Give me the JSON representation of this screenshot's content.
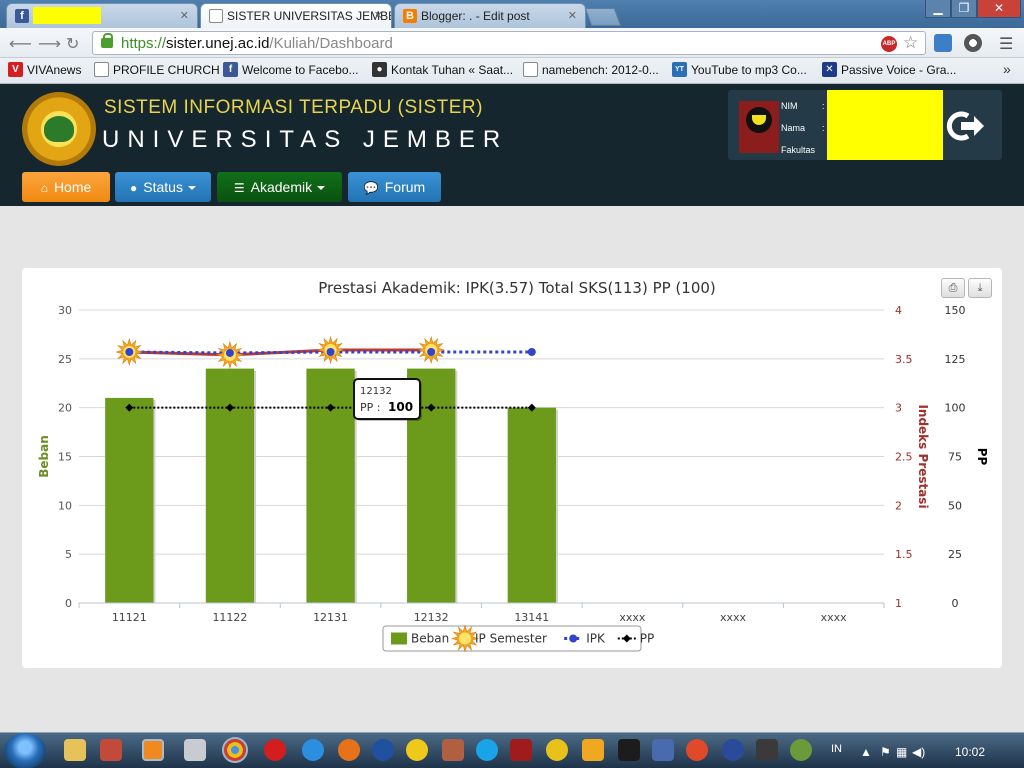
{
  "browser": {
    "tabs": [
      {
        "label": "",
        "icon": "facebook-icon",
        "active": false
      },
      {
        "label": "SISTER UNIVERSITAS JEMBER",
        "icon": "page-icon",
        "active": true
      },
      {
        "label": "Blogger: . - Edit post",
        "icon": "blogger-icon",
        "active": false
      }
    ],
    "url_protocol": "https://",
    "url_host": "sister.unej.ac.id",
    "url_path": "/Kuliah/Dashboard",
    "bookmarks": [
      {
        "label": "VIVAnews",
        "icon": "vivanews-icon",
        "color": "#d42020"
      },
      {
        "label": "PROFILE CHURCH",
        "icon": "page-icon",
        "color": "#ffffff"
      },
      {
        "label": "Welcome to Facebo...",
        "icon": "facebook-icon",
        "color": "#3b5998"
      },
      {
        "label": "Kontak Tuhan « Saat...",
        "icon": "blog-icon",
        "color": "#333333"
      },
      {
        "label": "namebench: 2012-0...",
        "icon": "page-icon",
        "color": "#ffffff"
      },
      {
        "label": "YouTube to mp3 Co...",
        "icon": "youtube-mp3-icon",
        "color": "#2a6fb8"
      },
      {
        "label": "Passive Voice - Gra...",
        "icon": "uk-flag-icon",
        "color": "#1e3b8a"
      }
    ],
    "more_bookmarks": "»"
  },
  "site": {
    "title": "SISTEM INFORMASI TERPADU (SISTER)",
    "subtitle": "UNIVERSITAS JEMBER",
    "user": {
      "nim_label": "NIM",
      "nama_label": "Nama",
      "fakultas_label": "Fakultas",
      "colon": ":"
    },
    "nav": [
      {
        "label": "Home",
        "icon": "home-icon",
        "color": "#f7931e"
      },
      {
        "label": "Status",
        "icon": "user-icon",
        "color": "#2a7fc0"
      },
      {
        "label": "Akademik",
        "icon": "list-icon",
        "color": "#0b5e0b"
      },
      {
        "label": "Forum",
        "icon": "chat-icon",
        "color": "#2a7fc0"
      }
    ]
  },
  "chart_data": {
    "type": "bar",
    "title": "Prestasi Akademik: IPK(3.57) Total SKS(113) PP (100)",
    "categories": [
      "11121",
      "11122",
      "12131",
      "12132",
      "13141",
      "xxxx",
      "xxxx",
      "xxxx"
    ],
    "axes": {
      "left": {
        "label": "Beban",
        "min": 0,
        "max": 30,
        "ticks": [
          0,
          5,
          10,
          15,
          20,
          25,
          30
        ],
        "color": "#6b8e23"
      },
      "right1": {
        "label": "Indeks Prestasi",
        "min": 1,
        "max": 4,
        "ticks": [
          "1",
          "1.5",
          "2",
          "2.5",
          "3",
          "3.5",
          "4"
        ],
        "color": "#a0302a"
      },
      "right2": {
        "label": "PP",
        "min": 0,
        "max": 150,
        "ticks": [
          0,
          25,
          50,
          75,
          100,
          125,
          150
        ],
        "color": "#000000"
      }
    },
    "series": [
      {
        "name": "Beban",
        "type": "bar",
        "axis": "left",
        "color": "#6c9a1b",
        "values": [
          21,
          24,
          24,
          24,
          20,
          null,
          null,
          null
        ]
      },
      {
        "name": "IP Semester",
        "type": "line",
        "axis": "right1",
        "color": "#c0392b",
        "marker": "sun",
        "values": [
          3.57,
          3.54,
          3.59,
          3.59,
          null,
          null,
          null,
          null
        ]
      },
      {
        "name": "IPK",
        "type": "line",
        "axis": "right1",
        "color": "#3344cc",
        "marker": "circle",
        "values": [
          3.57,
          3.56,
          3.57,
          3.57,
          3.57,
          null,
          null,
          null
        ]
      },
      {
        "name": "PP",
        "type": "line",
        "axis": "right2",
        "color": "#000000",
        "marker": "diamond",
        "values": [
          100,
          100,
          100,
          100,
          100,
          null,
          null,
          null
        ]
      }
    ],
    "legend": "bottom",
    "grid": true,
    "tooltip": {
      "category": "12132",
      "label": "PP :",
      "value": "100"
    }
  },
  "taskbar": {
    "language": "IN",
    "clock": "10:02"
  }
}
